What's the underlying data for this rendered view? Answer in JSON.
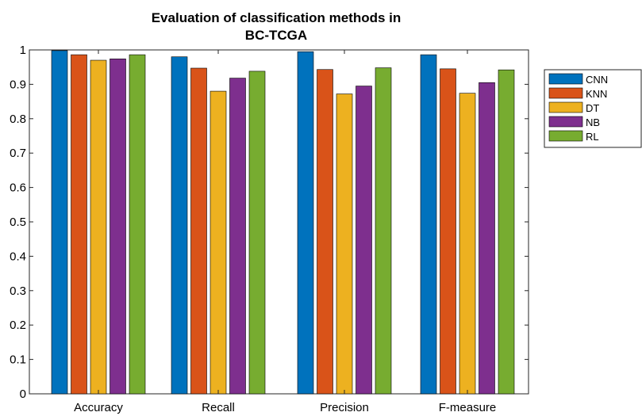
{
  "chart_data": {
    "type": "bar",
    "title": "Evaluation of classification methods in",
    "subtitle": "BC-TCGA",
    "xlabel": "",
    "ylabel": "",
    "categories": [
      "Accuracy",
      "Recall",
      "Precision",
      "F-measure"
    ],
    "ylim": [
      0,
      1
    ],
    "yticks": [
      "0",
      "0.1",
      "0.2",
      "0.3",
      "0.4",
      "0.5",
      "0.6",
      "0.7",
      "0.8",
      "0.9",
      "1"
    ],
    "grid": false,
    "legend_position": "outside top-right",
    "series": [
      {
        "name": "CNN",
        "color": "#0072BD",
        "values": [
          0.998,
          0.98,
          0.995,
          0.986
        ]
      },
      {
        "name": "KNN",
        "color": "#D95319",
        "values": [
          0.986,
          0.947,
          0.943,
          0.945
        ]
      },
      {
        "name": "DT",
        "color": "#EDB120",
        "values": [
          0.97,
          0.88,
          0.872,
          0.874
        ]
      },
      {
        "name": "NB",
        "color": "#7E2F8E",
        "values": [
          0.974,
          0.918,
          0.895,
          0.905
        ]
      },
      {
        "name": "RL",
        "color": "#77AC30",
        "values": [
          0.986,
          0.938,
          0.948,
          0.942
        ]
      }
    ]
  }
}
